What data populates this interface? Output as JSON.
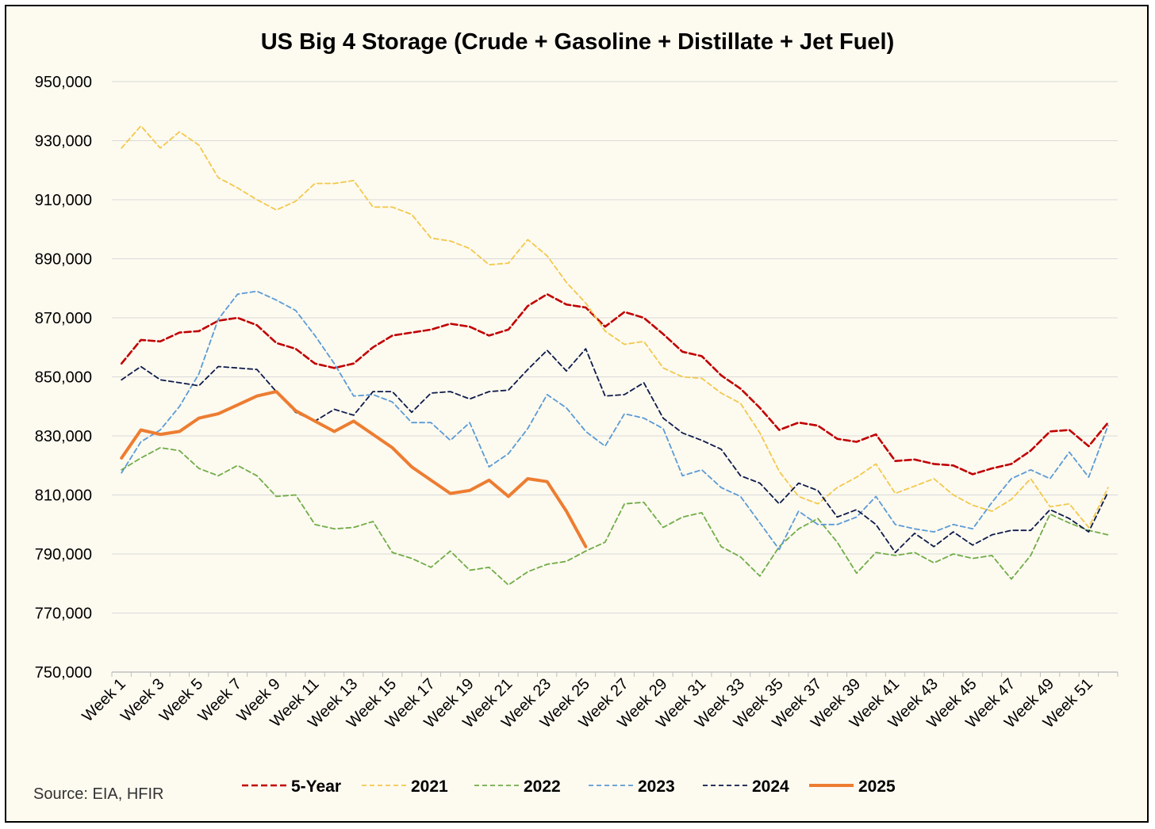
{
  "source_text": "Source: EIA, HFIR",
  "chart_data": {
    "type": "line",
    "title": "US Big 4 Storage (Crude + Gasoline + Distillate + Jet Fuel)",
    "xlabel": "",
    "ylabel": "",
    "ylim": [
      750000,
      950000
    ],
    "y_ticks": [
      950000,
      930000,
      910000,
      890000,
      870000,
      850000,
      830000,
      810000,
      790000,
      770000,
      750000
    ],
    "y_tick_labels": [
      "950,000",
      "930,000",
      "910,000",
      "890,000",
      "870,000",
      "850,000",
      "830,000",
      "810,000",
      "790,000",
      "770,000",
      "750,000"
    ],
    "x_tick_labels": [
      "Week 1",
      "Week 3",
      "Week 5",
      "Week 7",
      "Week 9",
      "Week 11",
      "Week 13",
      "Week 15",
      "Week 17",
      "Week 19",
      "Week 21",
      "Week 23",
      "Week 25",
      "Week 27",
      "Week 29",
      "Week 31",
      "Week 33",
      "Week 35",
      "Week 37",
      "Week 39",
      "Week 41",
      "Week 43",
      "Week 45",
      "Week 47",
      "Week 49",
      "Week 51"
    ],
    "grid": true,
    "legend_position": "bottom",
    "series": [
      {
        "name": "5-Year",
        "color": "#c00000",
        "style": "dashed",
        "values": [
          854500,
          862500,
          862000,
          865000,
          865500,
          869000,
          870000,
          867500,
          861500,
          859500,
          854500,
          853000,
          854500,
          860000,
          864000,
          865000,
          866000,
          868000,
          867000,
          864000,
          866000,
          874000,
          878000,
          874500,
          873500,
          867000,
          872000,
          870000,
          864500,
          858500,
          857000,
          850500,
          846000,
          839500,
          832000,
          834500,
          833500,
          829000,
          828000,
          830500,
          821500,
          822000,
          820500,
          820000,
          817000,
          819000,
          820500,
          825000,
          831500,
          832000,
          826500,
          834500
        ]
      },
      {
        "name": "2021",
        "color": "#f2c94c",
        "style": "dashed",
        "values": [
          927500,
          935000,
          927500,
          933000,
          928500,
          917500,
          914000,
          910000,
          906500,
          909500,
          915500,
          915500,
          916500,
          907500,
          907500,
          905000,
          897000,
          896000,
          893500,
          888000,
          888500,
          896500,
          891000,
          882000,
          875000,
          865500,
          861000,
          862000,
          853000,
          850000,
          849500,
          844500,
          841000,
          831000,
          818000,
          809500,
          807000,
          812500,
          816000,
          820500,
          810500,
          813000,
          815500,
          810000,
          806500,
          804500,
          808500,
          815500,
          806000,
          807000,
          799000,
          812500
        ]
      },
      {
        "name": "2022",
        "color": "#70ad47",
        "style": "dashed",
        "values": [
          818500,
          822500,
          826000,
          825000,
          819000,
          816500,
          820000,
          816500,
          809500,
          810000,
          800000,
          798500,
          799000,
          801000,
          790500,
          788500,
          785500,
          791000,
          784500,
          785500,
          779500,
          784000,
          786500,
          787500,
          791000,
          794000,
          807000,
          807500,
          799000,
          802500,
          804000,
          792500,
          789000,
          782500,
          792500,
          798500,
          802000,
          794000,
          783500,
          790500,
          789500,
          790500,
          787000,
          790000,
          788500,
          789500,
          781500,
          789500,
          803500,
          800500,
          798000,
          796500
        ]
      },
      {
        "name": "2023",
        "color": "#5b9bd5",
        "style": "dashed",
        "values": [
          817500,
          828000,
          832000,
          840000,
          851000,
          869500,
          878000,
          879000,
          876000,
          872500,
          864000,
          854500,
          843500,
          844000,
          841500,
          834500,
          834500,
          828500,
          834500,
          819500,
          824000,
          832500,
          844000,
          839500,
          831500,
          826500,
          837500,
          836000,
          832500,
          816500,
          818500,
          812500,
          809500,
          800500,
          791500,
          804500,
          800000,
          800000,
          802500,
          809500,
          800000,
          798500,
          797500,
          800000,
          798500,
          807500,
          815500,
          818500,
          815500,
          824500,
          816000,
          833500
        ]
      },
      {
        "name": "2024",
        "color": "#0d1b4b",
        "style": "dashed",
        "values": [
          849000,
          853500,
          849000,
          848000,
          847000,
          853500,
          853000,
          852500,
          845000,
          838000,
          835000,
          839000,
          837000,
          845000,
          845000,
          838000,
          844500,
          845000,
          842500,
          845000,
          845500,
          852500,
          859000,
          852000,
          859500,
          843500,
          844000,
          848000,
          836000,
          831000,
          828500,
          825500,
          816500,
          814000,
          807000,
          814000,
          811500,
          802500,
          805000,
          800000,
          790500,
          797000,
          792500,
          797500,
          793000,
          796500,
          798000,
          798000,
          805000,
          802000,
          797500,
          811000
        ]
      },
      {
        "name": "2025",
        "color": "#ed7d31",
        "style": "solid",
        "values": [
          822500,
          832000,
          830500,
          831500,
          836000,
          837500,
          840500,
          843500,
          845000,
          838500,
          835000,
          831500,
          835000,
          830500,
          826000,
          819500,
          815000,
          810500,
          811500,
          815000,
          809500,
          815500,
          814500,
          804500,
          792500
        ]
      }
    ]
  }
}
